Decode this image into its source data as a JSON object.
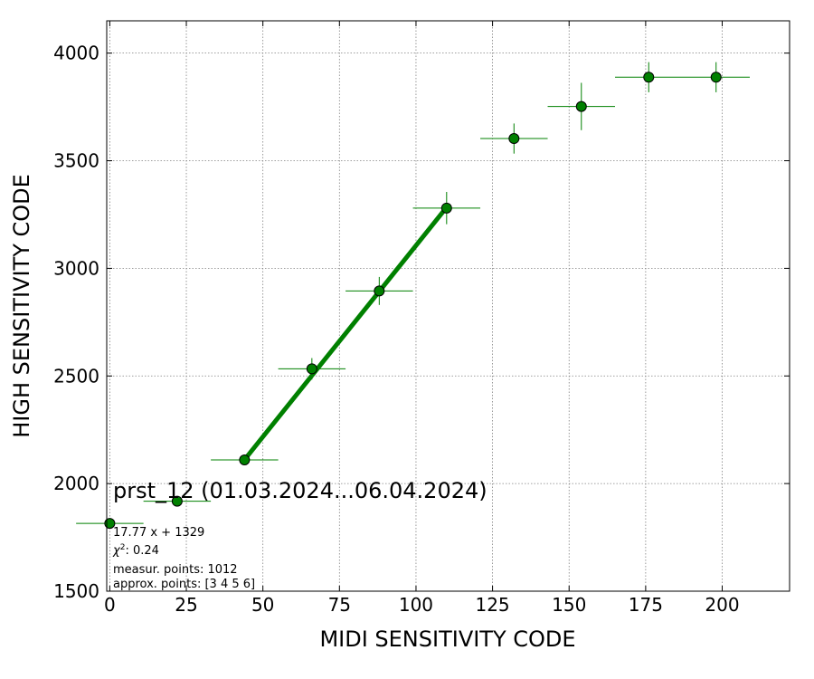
{
  "chart_data": {
    "type": "scatter",
    "xlabel": "MIDI SENSITIVITY CODE",
    "ylabel": "HIGH SENSITIVITY CODE",
    "xlim": [
      -1,
      222
    ],
    "ylim": [
      1500,
      4150
    ],
    "xticks": [
      0,
      25,
      50,
      75,
      100,
      125,
      150,
      175,
      200
    ],
    "yticks": [
      1500,
      2000,
      2500,
      3000,
      3500,
      4000
    ],
    "grid": true,
    "colors": {
      "marker": "#008000",
      "fit_line": "#008000",
      "errorbar": "#008000",
      "grid": "#808080"
    },
    "points": [
      {
        "x": 0,
        "y": 1815,
        "xerr": 11,
        "yerr": 0
      },
      {
        "x": 22,
        "y": 1918,
        "xerr": 11,
        "yerr": 0
      },
      {
        "x": 44,
        "y": 2110,
        "xerr": 11,
        "yerr": 0
      },
      {
        "x": 66,
        "y": 2533,
        "xerr": 11,
        "yerr": 50
      },
      {
        "x": 88,
        "y": 2895,
        "xerr": 11,
        "yerr": 65
      },
      {
        "x": 110,
        "y": 3280,
        "xerr": 11,
        "yerr": 75
      },
      {
        "x": 132,
        "y": 3603,
        "xerr": 11,
        "yerr": 70
      },
      {
        "x": 154,
        "y": 3752,
        "xerr": 11,
        "yerr": 110
      },
      {
        "x": 176,
        "y": 3888,
        "xerr": 11,
        "yerr": 70
      },
      {
        "x": 198,
        "y": 3888,
        "xerr": 11,
        "yerr": 70
      }
    ],
    "fit": {
      "slope": 17.77,
      "intercept": 1329,
      "x_range": [
        44,
        110
      ]
    },
    "annotations": {
      "title": "prst_12 (01.03.2024...06.04.2024)",
      "equation": "17.77 x + 1329",
      "chi2_label": "χ",
      "chi2_sup": "2",
      "chi2_value": ": 0.24",
      "measur_points": "measur. points: 1012",
      "approx_points": "approx. points: [3 4 5 6]"
    }
  }
}
